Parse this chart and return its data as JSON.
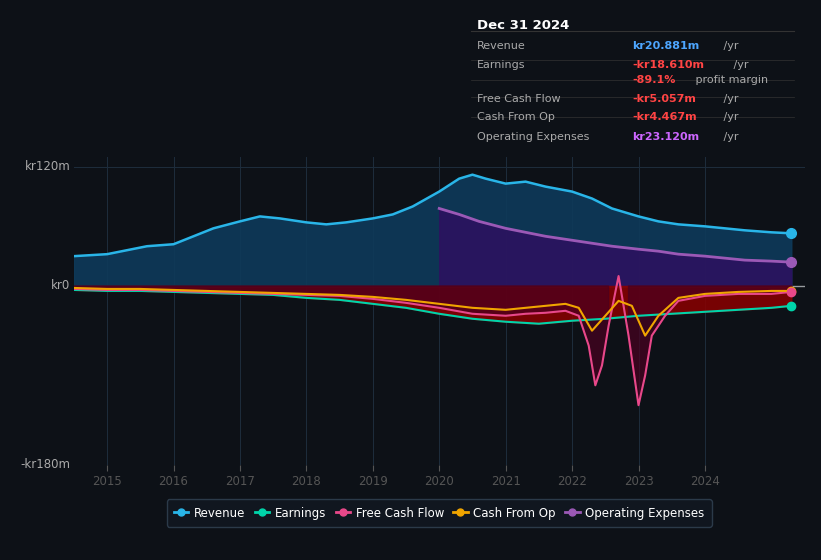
{
  "bg_color": "#0d1117",
  "plot_bg_color": "#0d1117",
  "title": "Dec 31 2024",
  "ylim": [
    -180,
    130
  ],
  "yticks_labeled": [
    [
      120,
      "kr120m"
    ],
    [
      0,
      "kr0"
    ],
    [
      -180,
      "-kr180m"
    ]
  ],
  "xlim": [
    2014.5,
    2025.5
  ],
  "xticks": [
    2015,
    2016,
    2017,
    2018,
    2019,
    2020,
    2021,
    2022,
    2023,
    2024
  ],
  "grid_color": "#1e2d3d",
  "zero_line_color": "#cccccc",
  "series": {
    "revenue": {
      "color": "#29b5e8",
      "fill_color": "#0e3a5a",
      "label": "Revenue"
    },
    "earnings": {
      "color": "#00d4aa",
      "fill_color": "#8b0000",
      "label": "Earnings"
    },
    "fcf": {
      "color": "#e8488a",
      "fill_color": "#5c0020",
      "label": "Free Cash Flow"
    },
    "cashfromop": {
      "color": "#f0a500",
      "label": "Cash From Op"
    },
    "opex": {
      "color": "#9b59b6",
      "fill_color": "#2e1060",
      "label": "Operating Expenses"
    }
  },
  "revenue_x": [
    2014.5,
    2015.0,
    2015.3,
    2015.6,
    2016.0,
    2016.3,
    2016.6,
    2017.0,
    2017.3,
    2017.6,
    2018.0,
    2018.3,
    2018.6,
    2019.0,
    2019.3,
    2019.6,
    2020.0,
    2020.3,
    2020.5,
    2020.7,
    2021.0,
    2021.3,
    2021.6,
    2022.0,
    2022.3,
    2022.6,
    2023.0,
    2023.3,
    2023.6,
    2024.0,
    2024.3,
    2024.6,
    2025.0,
    2025.3
  ],
  "revenue_y": [
    30,
    32,
    36,
    40,
    42,
    50,
    58,
    65,
    70,
    68,
    64,
    62,
    64,
    68,
    72,
    80,
    95,
    108,
    112,
    108,
    103,
    105,
    100,
    95,
    88,
    78,
    70,
    65,
    62,
    60,
    58,
    56,
    54,
    53
  ],
  "earnings_x": [
    2014.5,
    2015.0,
    2015.5,
    2016.0,
    2016.5,
    2017.0,
    2017.5,
    2018.0,
    2018.5,
    2019.0,
    2019.5,
    2020.0,
    2020.5,
    2021.0,
    2021.5,
    2022.0,
    2022.5,
    2023.0,
    2023.5,
    2024.0,
    2024.5,
    2025.0,
    2025.3
  ],
  "earnings_y": [
    -4,
    -5,
    -5,
    -6,
    -7,
    -8,
    -9,
    -12,
    -14,
    -18,
    -22,
    -28,
    -33,
    -36,
    -38,
    -35,
    -33,
    -30,
    -28,
    -26,
    -24,
    -22,
    -20
  ],
  "fcf_x": [
    2014.5,
    2015.0,
    2015.5,
    2016.0,
    2016.5,
    2017.0,
    2017.5,
    2018.0,
    2018.5,
    2019.0,
    2019.5,
    2020.0,
    2020.5,
    2021.0,
    2021.3,
    2021.6,
    2021.9,
    2022.1,
    2022.25,
    2022.35,
    2022.45,
    2022.55,
    2022.7,
    2022.85,
    2023.0,
    2023.1,
    2023.2,
    2023.4,
    2023.6,
    2024.0,
    2024.5,
    2025.0,
    2025.3
  ],
  "fcf_y": [
    -3,
    -4,
    -4,
    -5,
    -6,
    -7,
    -8,
    -9,
    -10,
    -13,
    -17,
    -22,
    -28,
    -30,
    -28,
    -27,
    -25,
    -30,
    -60,
    -100,
    -80,
    -40,
    10,
    -50,
    -120,
    -90,
    -50,
    -30,
    -15,
    -10,
    -8,
    -8,
    -6
  ],
  "cashfromop_x": [
    2014.5,
    2015.0,
    2015.5,
    2016.0,
    2016.5,
    2017.0,
    2017.5,
    2018.0,
    2018.5,
    2019.0,
    2019.5,
    2020.0,
    2020.5,
    2021.0,
    2021.3,
    2021.6,
    2021.9,
    2022.1,
    2022.3,
    2022.5,
    2022.7,
    2022.9,
    2023.1,
    2023.3,
    2023.6,
    2024.0,
    2024.5,
    2025.0,
    2025.3
  ],
  "cashfromop_y": [
    -2,
    -3,
    -3,
    -4,
    -5,
    -6,
    -7,
    -8,
    -9,
    -11,
    -14,
    -18,
    -22,
    -24,
    -22,
    -20,
    -18,
    -22,
    -45,
    -30,
    -15,
    -20,
    -50,
    -30,
    -12,
    -8,
    -6,
    -5,
    -5
  ],
  "opex_x": [
    2020.0,
    2020.3,
    2020.6,
    2021.0,
    2021.3,
    2021.6,
    2022.0,
    2022.3,
    2022.6,
    2023.0,
    2023.3,
    2023.6,
    2024.0,
    2024.3,
    2024.6,
    2025.0,
    2025.3
  ],
  "opex_y": [
    78,
    72,
    65,
    58,
    54,
    50,
    46,
    43,
    40,
    37,
    35,
    32,
    30,
    28,
    26,
    25,
    24
  ],
  "info_box": {
    "rows": [
      {
        "label": "Revenue",
        "value": "kr20.881m",
        "suffix": " /yr",
        "value_color": "#4da6ff"
      },
      {
        "label": "Earnings",
        "value": "-kr18.610m",
        "suffix": " /yr",
        "value_color": "#ff4444"
      },
      {
        "label": "",
        "value": "-89.1%",
        "suffix": " profit margin",
        "value_color": "#ff4444"
      },
      {
        "label": "Free Cash Flow",
        "value": "-kr5.057m",
        "suffix": " /yr",
        "value_color": "#ff4444"
      },
      {
        "label": "Cash From Op",
        "value": "-kr4.467m",
        "suffix": " /yr",
        "value_color": "#ff4444"
      },
      {
        "label": "Operating Expenses",
        "value": "kr23.120m",
        "suffix": " /yr",
        "value_color": "#cc66ff"
      }
    ]
  }
}
